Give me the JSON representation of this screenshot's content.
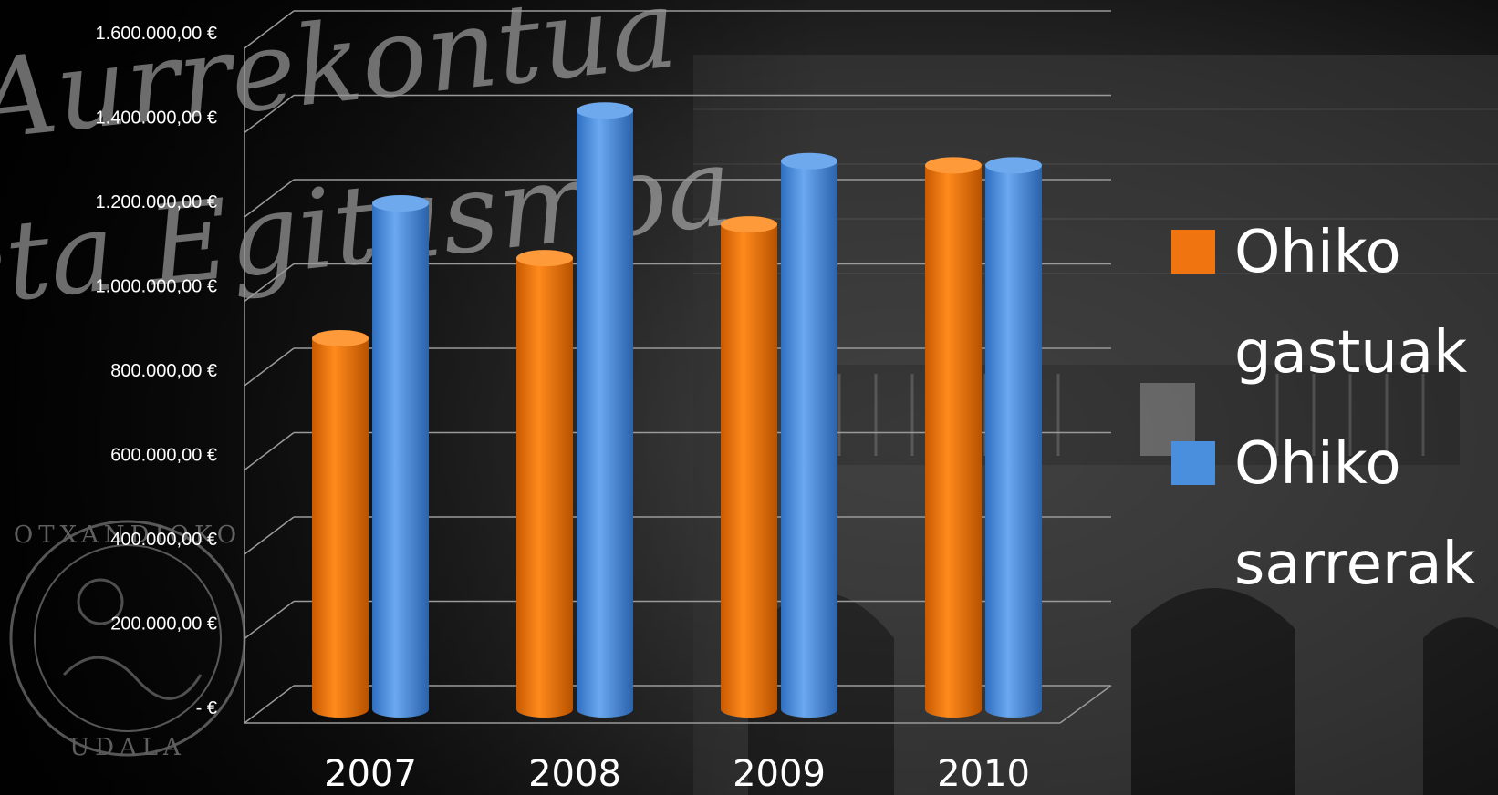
{
  "chart_data": {
    "type": "bar",
    "categories": [
      "2007",
      "2008",
      "2009",
      "2010"
    ],
    "series": [
      {
        "name": "Ohiko gastuak",
        "values": [
          880000,
          1070000,
          1150000,
          1290000
        ],
        "color": "#f07410"
      },
      {
        "name": "Ohiko sarrerak",
        "values": [
          1200000,
          1420000,
          1300000,
          1290000
        ],
        "color": "#4a8fde"
      }
    ],
    "ylim": [
      0,
      1600000
    ],
    "y_ticks": [
      {
        "value": 0,
        "label": "-   €"
      },
      {
        "value": 200000,
        "label": "200.000,00 €"
      },
      {
        "value": 400000,
        "label": "400.000,00 €"
      },
      {
        "value": 600000,
        "label": "600.000,00 €"
      },
      {
        "value": 800000,
        "label": "800.000,00 €"
      },
      {
        "value": 1000000,
        "label": "1.000.000,00 €"
      },
      {
        "value": 1200000,
        "label": "1.200.000,00 €"
      },
      {
        "value": 1400000,
        "label": "1.400.000,00 €"
      },
      {
        "value": 1600000,
        "label": "1.600.000,00 €"
      }
    ],
    "grid": true,
    "legend_position": "right",
    "legend_lines": [
      [
        "Ohiko",
        "gastuak"
      ],
      [
        "Ohiko",
        "sarrerak"
      ]
    ],
    "title": "",
    "xlabel": "",
    "ylabel": ""
  },
  "background": {
    "watermark_text_1": "Aurrekontua",
    "watermark_text_2": "eta Egitasmoa",
    "seal_top": "OTXANDIOKO",
    "seal_bottom": "UDALA"
  }
}
